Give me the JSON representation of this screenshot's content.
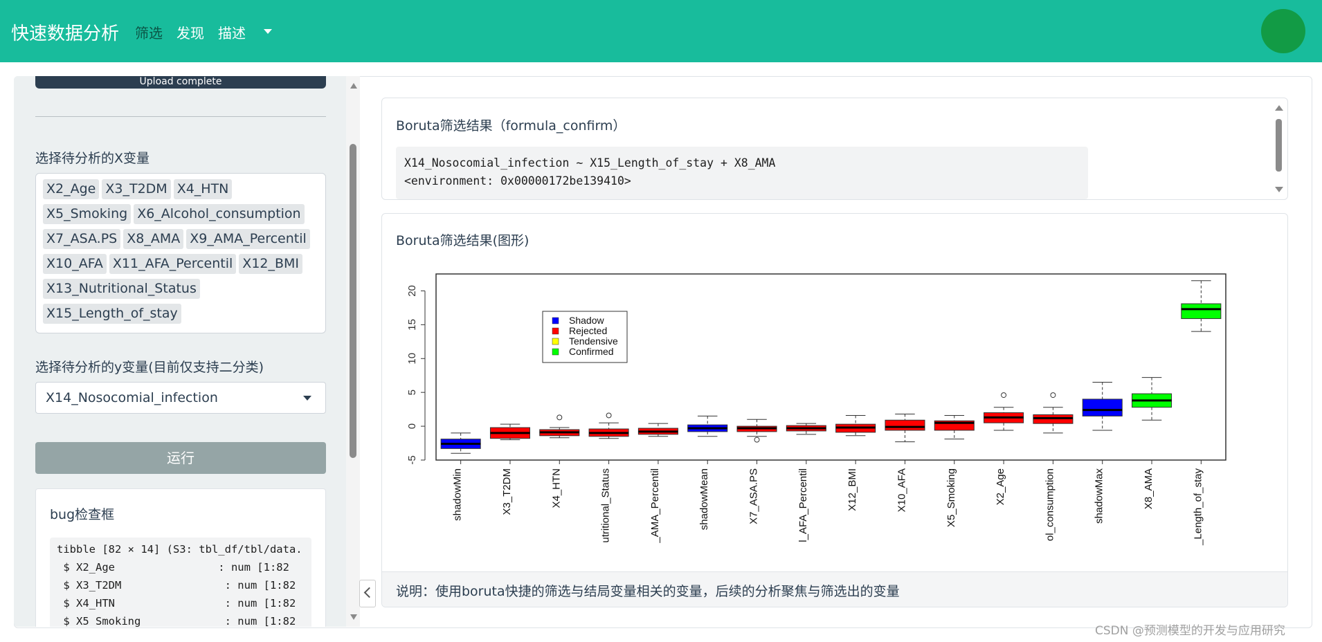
{
  "navbar": {
    "brand": "快速数据分析",
    "items": [
      "筛选",
      "发现",
      "描述"
    ]
  },
  "sidebar": {
    "upload_status": "Upload complete",
    "x_label": "选择待分析的X变量",
    "x_selected": [
      "X2_Age",
      "X3_T2DM",
      "X4_HTN",
      "X5_Smoking",
      "X6_Alcohol_consumption",
      "X7_ASA.PS",
      "X8_AMA",
      "X9_AMA_Percentil",
      "X10_AFA",
      "X11_AFA_Percentil",
      "X12_BMI",
      "X13_Nutritional_Status",
      "X15_Length_of_stay"
    ],
    "y_label": "选择待分析的y变量(目前仅支持二分类)",
    "y_selected": "X14_Nosocomial_infection",
    "run_button": "运行",
    "bug_title": "bug检查框",
    "bug_lines": [
      "tibble [82 × 14] (S3: tbl_df/tbl/data.",
      " $ X2_Age                : num [1:82",
      " $ X3_T2DM                : num [1:82",
      " $ X4_HTN                 : num [1:82",
      " $ X5_Smoking             : num [1:82"
    ]
  },
  "main": {
    "formula_card": {
      "title": "Boruta筛选结果（formula_confirm）",
      "code_lines": [
        "X14_Nosocomial_infection ~ X15_Length_of_stay + X8_AMA",
        "<environment: 0x00000172be139410>"
      ]
    },
    "plot_card": {
      "title": "Boruta筛选结果(图形)",
      "footer": "说明：使用boruta快捷的筛选与结局变量相关的变量，后续的分析聚焦与筛选出的变量"
    }
  },
  "chart_data": {
    "type": "boxplot",
    "ylim": [
      -5,
      22.5
    ],
    "yticks": [
      -5,
      0,
      5,
      10,
      15,
      20
    ],
    "categories": [
      "shadowMin",
      "X3_T2DM",
      "X4_HTN",
      "utritional_Status",
      "_AMA_Percentil",
      "shadowMean",
      "X7_ASA.PS",
      "l_AFA_Percentil",
      "X12_BMI",
      "X10_AFA",
      "X5_Smoking",
      "X2_Age",
      "ol_consumption",
      "shadowMax",
      "X8_AMA",
      "_Length_of_stay"
    ],
    "boxes": [
      {
        "status": "Shadow",
        "min": -4.0,
        "q1": -3.3,
        "median": -2.6,
        "q3": -1.9,
        "max": -1.0,
        "outliers": []
      },
      {
        "status": "Rejected",
        "min": -2.0,
        "q1": -1.8,
        "median": -1.0,
        "q3": -0.2,
        "max": 0.3,
        "outliers": []
      },
      {
        "status": "Rejected",
        "min": -1.7,
        "q1": -1.4,
        "median": -0.9,
        "q3": -0.5,
        "max": -0.2,
        "outliers": [
          1.3
        ]
      },
      {
        "status": "Rejected",
        "min": -1.8,
        "q1": -1.5,
        "median": -1.0,
        "q3": -0.4,
        "max": 0.5,
        "outliers": [
          1.6
        ]
      },
      {
        "status": "Rejected",
        "min": -1.5,
        "q1": -1.2,
        "median": -0.8,
        "q3": -0.3,
        "max": 0.4,
        "outliers": []
      },
      {
        "status": "Shadow",
        "min": -1.5,
        "q1": -0.8,
        "median": -0.3,
        "q3": 0.2,
        "max": 1.5,
        "outliers": []
      },
      {
        "status": "Rejected",
        "min": -1.5,
        "q1": -0.8,
        "median": -0.3,
        "q3": 0.0,
        "max": 1.0,
        "outliers": [
          -2.0
        ]
      },
      {
        "status": "Rejected",
        "min": -1.2,
        "q1": -0.7,
        "median": -0.3,
        "q3": 0.1,
        "max": 0.4,
        "outliers": []
      },
      {
        "status": "Rejected",
        "min": -1.4,
        "q1": -0.9,
        "median": -0.2,
        "q3": 0.3,
        "max": 1.6,
        "outliers": []
      },
      {
        "status": "Rejected",
        "min": -2.3,
        "q1": -0.6,
        "median": -0.1,
        "q3": 0.9,
        "max": 1.8,
        "outliers": []
      },
      {
        "status": "Rejected",
        "min": -1.9,
        "q1": -0.6,
        "median": 0.5,
        "q3": 0.8,
        "max": 1.6,
        "outliers": []
      },
      {
        "status": "Rejected",
        "min": -0.6,
        "q1": 0.5,
        "median": 1.3,
        "q3": 2.0,
        "max": 2.8,
        "outliers": [
          4.6
        ]
      },
      {
        "status": "Rejected",
        "min": -1.0,
        "q1": 0.4,
        "median": 1.2,
        "q3": 1.7,
        "max": 2.8,
        "outliers": [
          4.6
        ]
      },
      {
        "status": "Shadow",
        "min": -0.6,
        "q1": 1.5,
        "median": 2.4,
        "q3": 4.0,
        "max": 6.5,
        "outliers": []
      },
      {
        "status": "Confirmed",
        "min": 0.9,
        "q1": 2.8,
        "median": 3.8,
        "q3": 4.8,
        "max": 7.2,
        "outliers": []
      },
      {
        "status": "Confirmed",
        "min": 14.0,
        "q1": 15.9,
        "median": 17.3,
        "q3": 18.1,
        "max": 21.5,
        "outliers": []
      }
    ],
    "legend": [
      {
        "name": "Shadow",
        "color": "#0000ff"
      },
      {
        "name": "Rejected",
        "color": "#ff0000"
      },
      {
        "name": "Tendensive",
        "color": "#ffff00"
      },
      {
        "name": "Confirmed",
        "color": "#00ff00"
      }
    ],
    "legend_position": "top-left"
  },
  "watermark": "CSDN @预测模型的开发与应用研究",
  "colors": {
    "navbar": "#18bc9c",
    "avatar": "#129b45",
    "primary": "#2c3e50",
    "run_button": "#95a5a6"
  }
}
